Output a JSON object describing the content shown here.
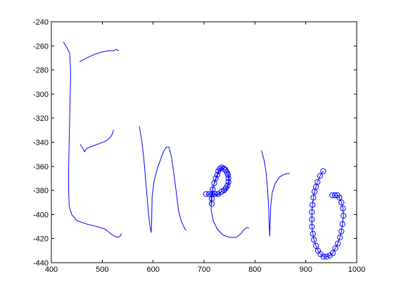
{
  "chart_data": {
    "type": "line",
    "xlim": [
      400,
      1000
    ],
    "ylim": [
      -440,
      -240
    ],
    "x_ticks": [
      400,
      500,
      600,
      700,
      800,
      900,
      1000
    ],
    "y_ticks": [
      -240,
      -260,
      -280,
      -300,
      -320,
      -340,
      -360,
      -380,
      -400,
      -420,
      -440
    ],
    "grid": false,
    "line_color": "#0000ff",
    "series": [
      {
        "marker": "none",
        "points": [
          [
            424,
            -257
          ],
          [
            430,
            -261
          ],
          [
            436,
            -266
          ],
          [
            438,
            -282
          ],
          [
            437,
            -300
          ],
          [
            436,
            -320
          ],
          [
            435,
            -340
          ],
          [
            434,
            -360
          ],
          [
            434,
            -380
          ],
          [
            435,
            -393
          ],
          [
            440,
            -400
          ],
          [
            450,
            -405
          ],
          [
            470,
            -408
          ],
          [
            490,
            -410
          ],
          [
            505,
            -412
          ],
          [
            520,
            -417
          ],
          [
            530,
            -419
          ],
          [
            535,
            -418
          ],
          [
            538,
            -416
          ]
        ]
      },
      {
        "marker": "none",
        "points": [
          [
            456,
            -273
          ],
          [
            470,
            -270
          ],
          [
            485,
            -267
          ],
          [
            500,
            -265
          ],
          [
            512,
            -264
          ],
          [
            522,
            -264
          ],
          [
            528,
            -263
          ],
          [
            532,
            -264
          ]
        ]
      },
      {
        "marker": "none",
        "points": [
          [
            457,
            -342
          ],
          [
            462,
            -345
          ],
          [
            465,
            -348
          ],
          [
            470,
            -345
          ],
          [
            482,
            -343
          ],
          [
            495,
            -341
          ],
          [
            507,
            -339
          ],
          [
            516,
            -336
          ],
          [
            520,
            -333
          ],
          [
            522,
            -330
          ]
        ]
      },
      {
        "marker": "none",
        "points": [
          [
            573,
            -327
          ],
          [
            578,
            -340
          ],
          [
            582,
            -355
          ],
          [
            585,
            -370
          ],
          [
            588,
            -385
          ],
          [
            591,
            -400
          ],
          [
            594,
            -410
          ],
          [
            596,
            -415
          ],
          [
            597,
            -408
          ],
          [
            598,
            -385
          ],
          [
            602,
            -372
          ],
          [
            608,
            -362
          ],
          [
            614,
            -355
          ],
          [
            620,
            -348
          ],
          [
            626,
            -344
          ],
          [
            631,
            -344
          ],
          [
            636,
            -352
          ],
          [
            641,
            -367
          ],
          [
            646,
            -383
          ],
          [
            650,
            -397
          ],
          [
            655,
            -405
          ],
          [
            660,
            -410
          ],
          [
            664,
            -413
          ]
        ]
      },
      {
        "marker": "none",
        "points": [
          [
            716,
            -383
          ],
          [
            726,
            -384
          ],
          [
            736,
            -383
          ],
          [
            745,
            -379
          ],
          [
            750,
            -373
          ],
          [
            749,
            -365
          ],
          [
            742,
            -360
          ],
          [
            733,
            -361
          ],
          [
            727,
            -367
          ],
          [
            722,
            -372
          ],
          [
            717,
            -378
          ],
          [
            714,
            -387
          ],
          [
            714,
            -396
          ],
          [
            718,
            -405
          ],
          [
            726,
            -412
          ],
          [
            737,
            -417
          ],
          [
            750,
            -419
          ],
          [
            763,
            -419
          ],
          [
            772,
            -416
          ],
          [
            778,
            -413
          ],
          [
            783,
            -411
          ],
          [
            788,
            -411
          ]
        ]
      },
      {
        "marker": "circle",
        "points": [
          [
            704,
            -383
          ],
          [
            710,
            -383
          ],
          [
            716,
            -383
          ],
          [
            722,
            -383
          ],
          [
            728,
            -383
          ],
          [
            734,
            -381
          ],
          [
            739,
            -380
          ],
          [
            743,
            -378
          ],
          [
            746,
            -376
          ],
          [
            748,
            -373
          ],
          [
            748,
            -370
          ],
          [
            747,
            -367
          ],
          [
            745,
            -365
          ],
          [
            742,
            -363
          ],
          [
            739,
            -362
          ],
          [
            735,
            -361
          ],
          [
            731,
            -362
          ],
          [
            728,
            -364
          ],
          [
            726,
            -367
          ],
          [
            723,
            -370
          ],
          [
            720,
            -374
          ],
          [
            717,
            -379
          ],
          [
            716,
            -383
          ],
          [
            715,
            -387
          ],
          [
            715,
            -391
          ]
        ]
      },
      {
        "marker": "none",
        "points": [
          [
            813,
            -347
          ],
          [
            818,
            -355
          ],
          [
            822,
            -365
          ],
          [
            825,
            -380
          ],
          [
            827,
            -395
          ],
          [
            828,
            -408
          ],
          [
            829,
            -418
          ],
          [
            830,
            -408
          ],
          [
            831,
            -393
          ],
          [
            834,
            -382
          ],
          [
            840,
            -374
          ],
          [
            848,
            -369
          ],
          [
            856,
            -367
          ],
          [
            863,
            -366
          ],
          [
            868,
            -366
          ]
        ]
      },
      {
        "marker": "circle",
        "points": [
          [
            934,
            -364
          ],
          [
            928,
            -368
          ],
          [
            923,
            -373
          ],
          [
            920,
            -377
          ],
          [
            917,
            -381
          ],
          [
            915,
            -386
          ],
          [
            913,
            -392
          ],
          [
            912,
            -398
          ],
          [
            912,
            -404
          ],
          [
            912,
            -410
          ],
          [
            914,
            -416
          ],
          [
            916,
            -421
          ],
          [
            920,
            -426
          ],
          [
            924,
            -430
          ],
          [
            929,
            -433
          ],
          [
            935,
            -435
          ],
          [
            941,
            -435
          ],
          [
            947,
            -434
          ],
          [
            953,
            -432
          ],
          [
            958,
            -428
          ],
          [
            963,
            -424
          ],
          [
            967,
            -419
          ],
          [
            970,
            -414
          ],
          [
            972,
            -408
          ],
          [
            974,
            -401
          ],
          [
            973,
            -395
          ],
          [
            970,
            -390
          ],
          [
            966,
            -386
          ],
          [
            962,
            -384
          ],
          [
            957,
            -384
          ],
          [
            952,
            -384
          ]
        ]
      }
    ]
  }
}
